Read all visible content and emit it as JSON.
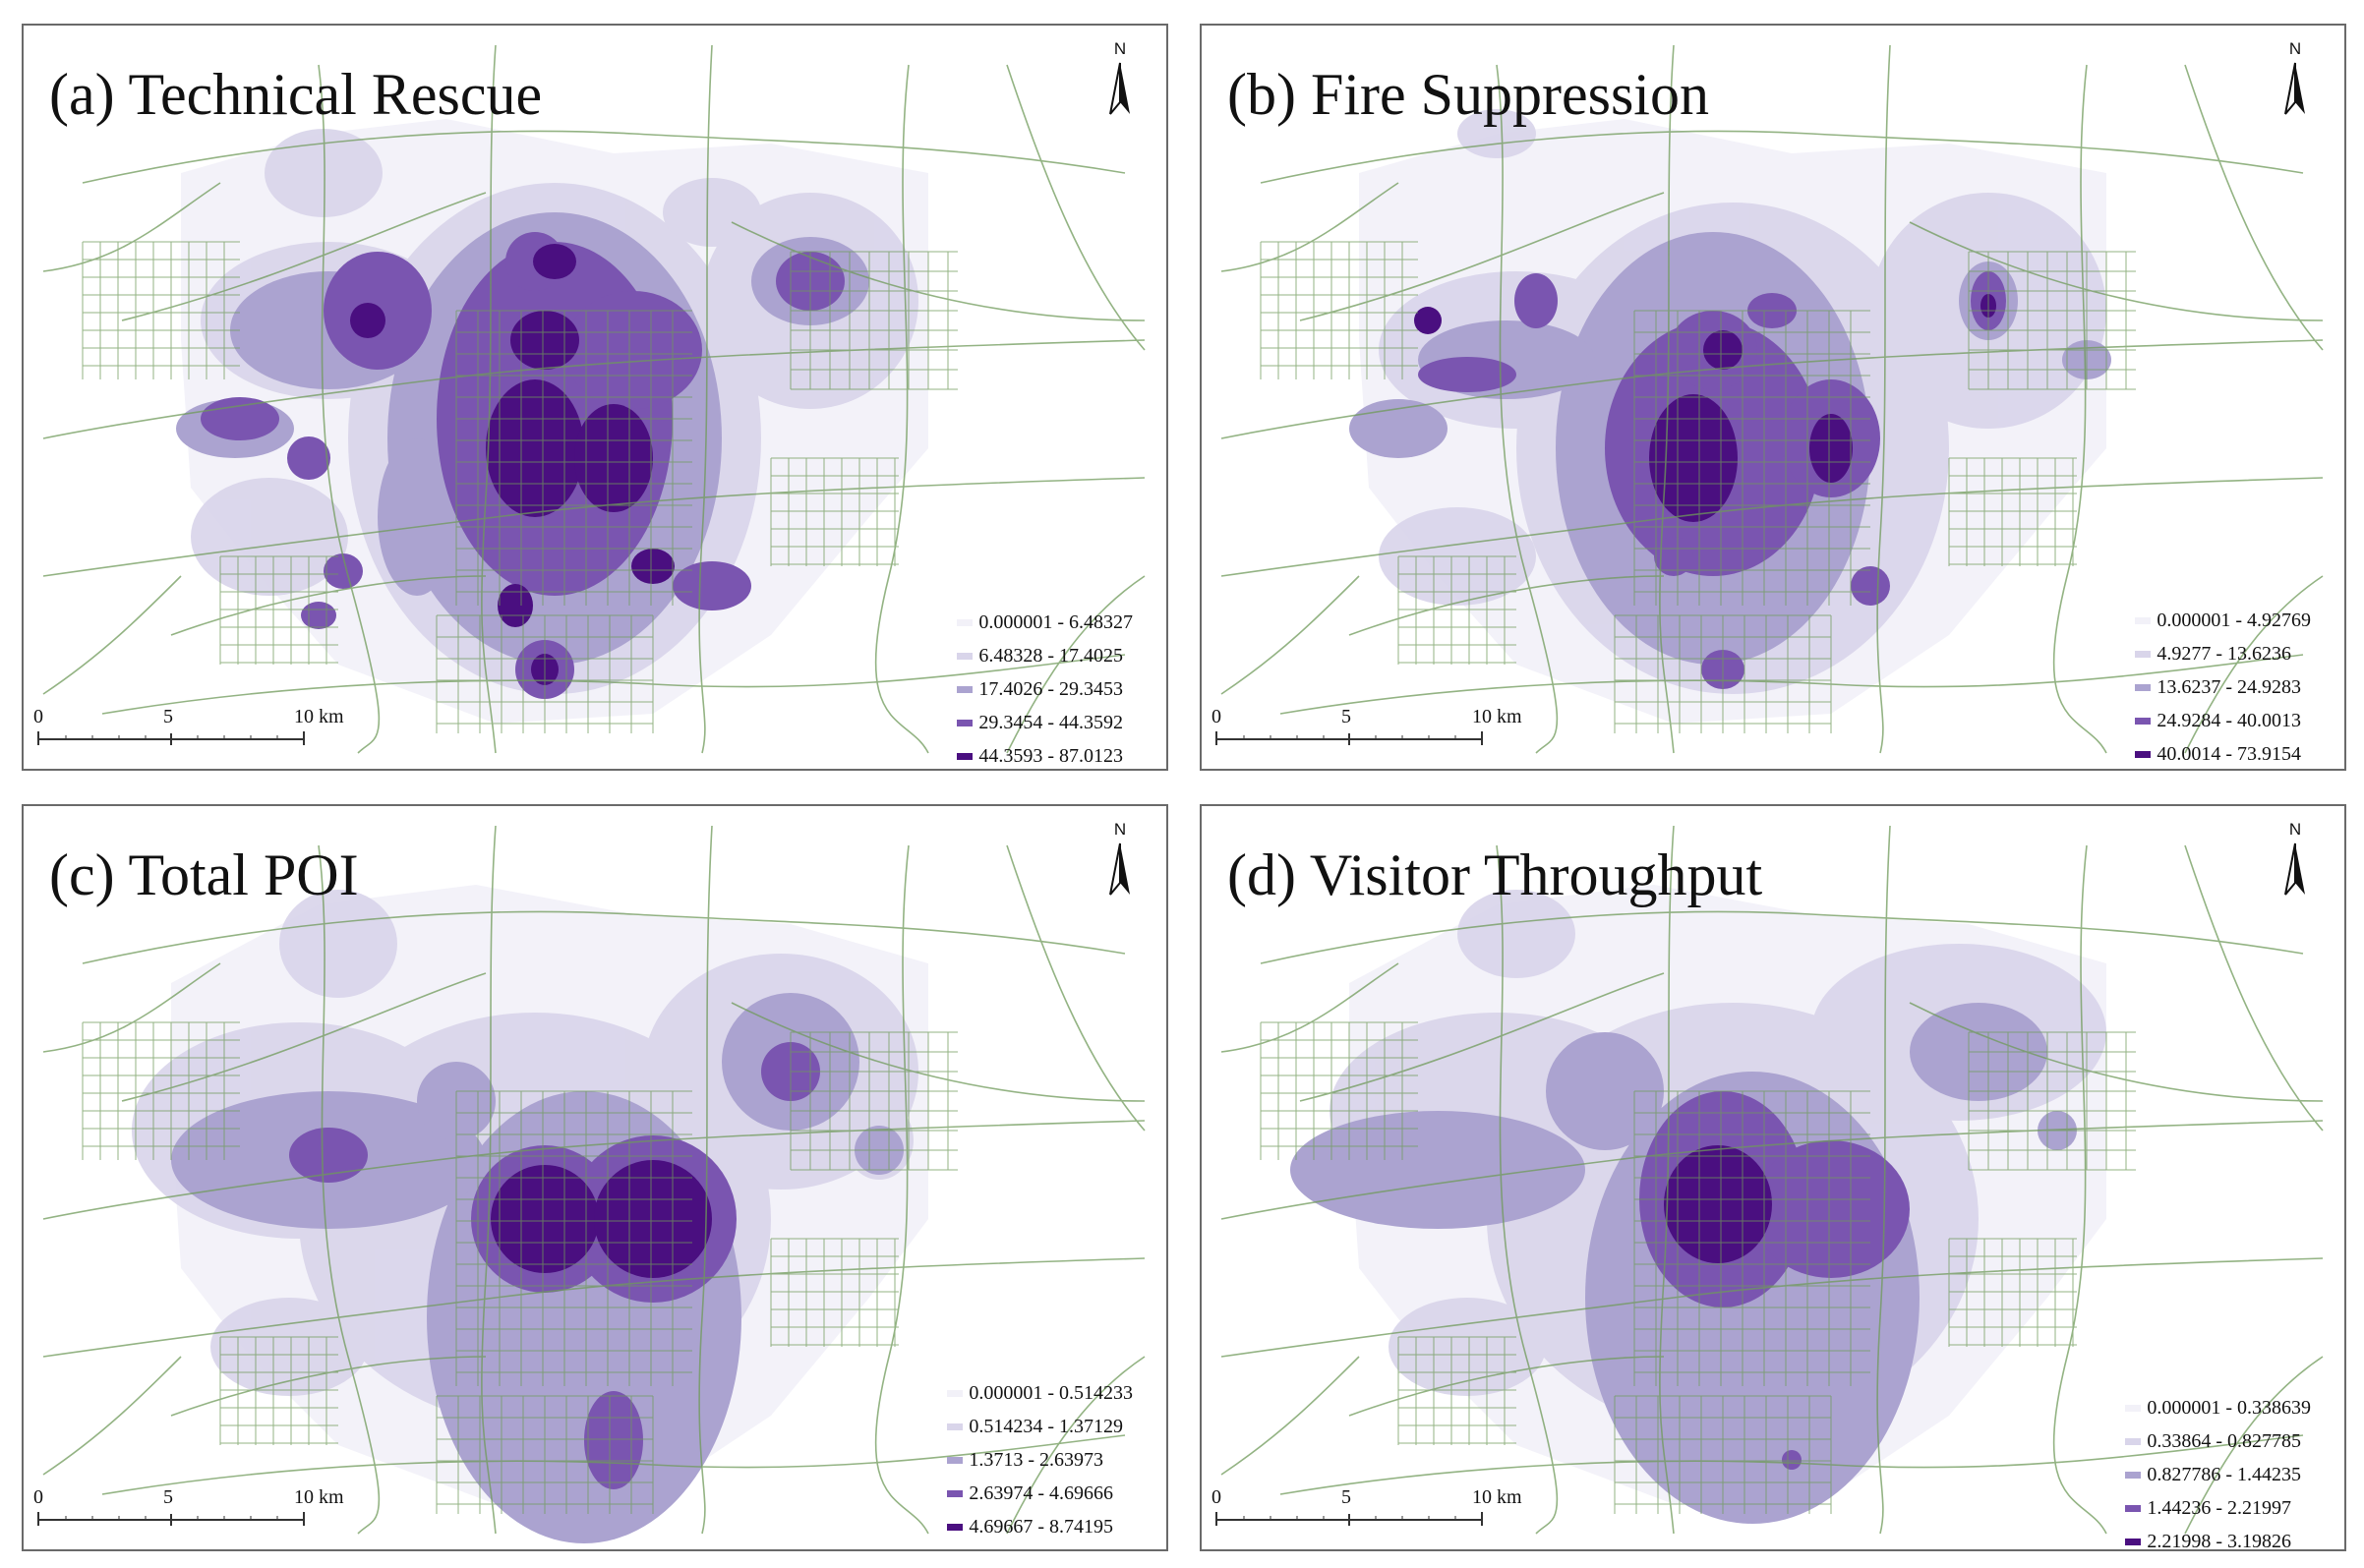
{
  "panels": [
    {
      "id": "a",
      "title": "(a) Technical Rescue",
      "north_label": "N",
      "scale": {
        "labels": [
          "0",
          "5",
          "10 km"
        ]
      },
      "legend": [
        "0.000001 - 6.48327",
        "6.48328 - 17.4025",
        "17.4026 - 29.3453",
        "29.3454 - 44.3592",
        "44.3593 - 87.0123"
      ]
    },
    {
      "id": "b",
      "title": "(b) Fire Suppression",
      "north_label": "N",
      "scale": {
        "labels": [
          "0",
          "5",
          "10 km"
        ]
      },
      "legend": [
        "0.000001 - 4.92769",
        "4.9277 - 13.6236",
        "13.6237 - 24.9283",
        "24.9284 - 40.0013",
        "40.0014 - 73.9154"
      ]
    },
    {
      "id": "c",
      "title": "(c) Total POI",
      "north_label": "N",
      "scale": {
        "labels": [
          "0",
          "5",
          "10 km"
        ]
      },
      "legend": [
        "0.000001 - 0.514233",
        "0.514234 - 1.37129",
        "1.3713 - 2.63973",
        "2.63974 - 4.69666",
        "4.69667 - 8.74195"
      ]
    },
    {
      "id": "d",
      "title": "(d) Visitor Throughput",
      "north_label": "N",
      "scale": {
        "labels": [
          "0",
          "5",
          "10 km"
        ]
      },
      "legend": [
        "0.000001 - 0.338639",
        "0.33864 - 0.827785",
        "0.827786 - 1.44235",
        "1.44236 - 2.21997",
        "2.21998 - 3.19826"
      ]
    }
  ],
  "colors": {
    "class1": "#f2f1f8",
    "class2": "#d9d5ea",
    "class3": "#aba3d0",
    "class4": "#7a55b0",
    "class5": "#4a0f80",
    "roads": "#6f9a5a",
    "border": "#6a6a6a"
  }
}
